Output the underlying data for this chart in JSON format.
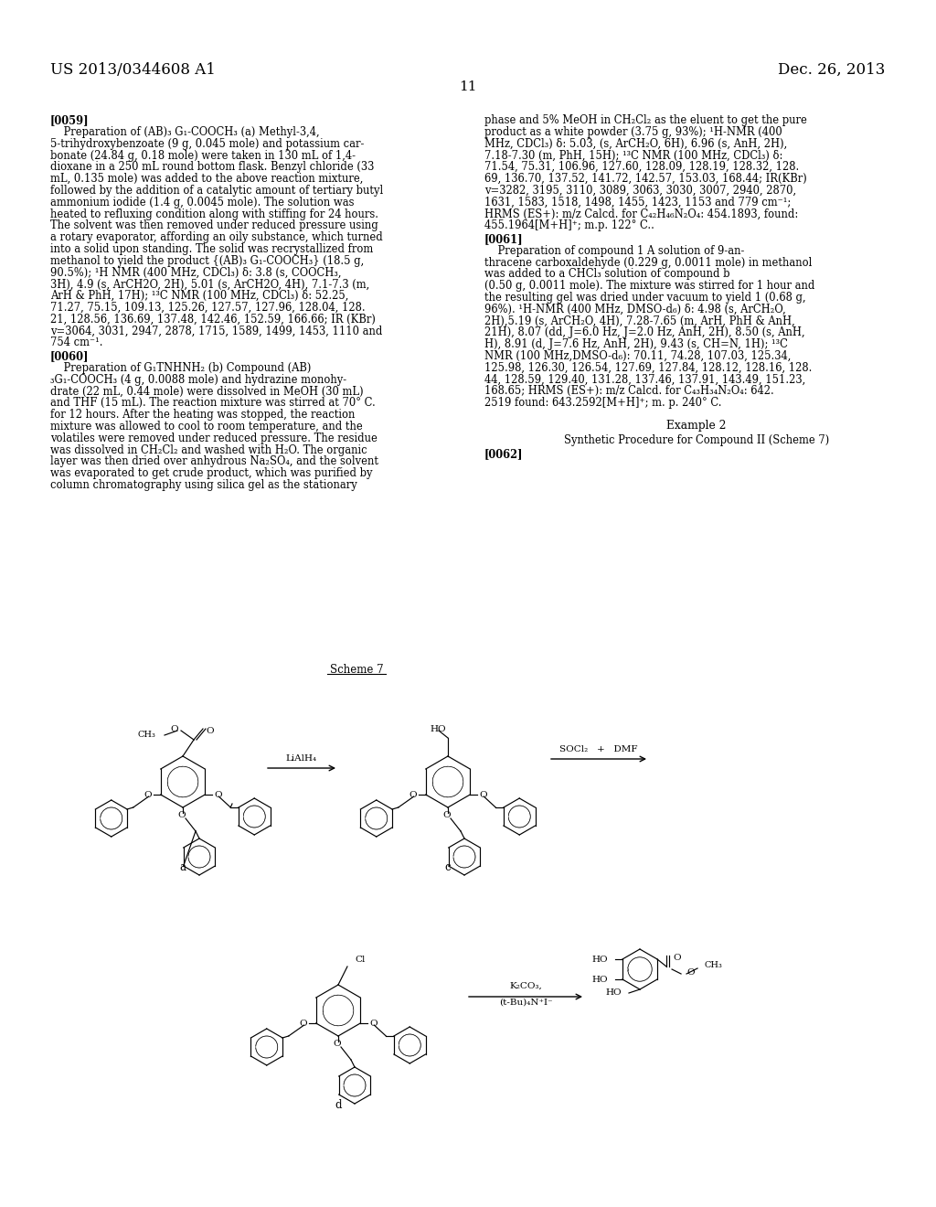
{
  "header_left": "US 2013/0344608 A1",
  "header_right": "Dec. 26, 2013",
  "page_number": "11",
  "background_color": "#ffffff",
  "scheme_title": "Scheme 7"
}
